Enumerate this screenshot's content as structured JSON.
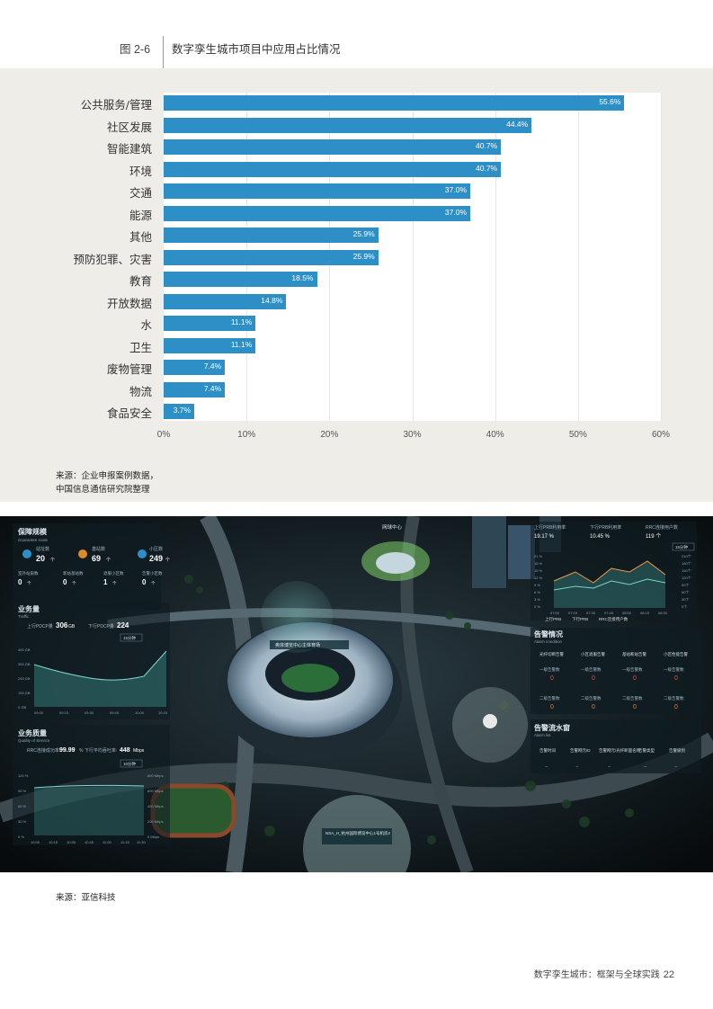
{
  "header": {
    "figure_number": "图 2-6",
    "figure_title": "数字孪生城市项目中应用占比情况"
  },
  "chart_data": {
    "type": "bar",
    "orientation": "horizontal",
    "title": "数字孪生城市项目中应用占比情况",
    "categories": [
      "公共服务/管理",
      "社区发展",
      "智能建筑",
      "环境",
      "交通",
      "能源",
      "其他",
      "预防犯罪、灾害",
      "教育",
      "开放数据",
      "水",
      "卫生",
      "废物管理",
      "物流",
      "食品安全"
    ],
    "values": [
      55.6,
      44.4,
      40.7,
      40.7,
      37.0,
      37.0,
      25.9,
      25.9,
      18.5,
      14.8,
      11.1,
      11.1,
      7.4,
      7.4,
      3.7
    ],
    "value_labels": [
      "55.6%",
      "44.4%",
      "40.7%",
      "40.7%",
      "37.0%",
      "37.0%",
      "25.9%",
      "25.9%",
      "18.5%",
      "14.8%",
      "11.1%",
      "11.1%",
      "7.4%",
      "7.4%",
      "3.7%"
    ],
    "x_ticks": [
      0,
      10,
      20,
      30,
      40,
      50,
      60
    ],
    "x_tick_labels": [
      "0%",
      "10%",
      "20%",
      "30%",
      "40%",
      "50%",
      "60%"
    ],
    "xlim": [
      0,
      60
    ],
    "grid": true,
    "legend": "none",
    "bar_color": "#2e8fc6"
  },
  "source_chart": [
    "来源：企业申报案例数据，",
    "中国信息通信研究院整理"
  ],
  "dashboard": {
    "left": {
      "guarantee_title": "保障规模",
      "guarantee_sub": "Guarantee scale",
      "stats": [
        {
          "label": "站址数",
          "value": "20",
          "unit": "个"
        },
        {
          "label": "基站数",
          "value": "69",
          "unit": "个"
        },
        {
          "label": "小区数",
          "value": "249",
          "unit": "个"
        }
      ],
      "small_stats": [
        {
          "label": "室外站扇数",
          "value": "0",
          "unit": "个"
        },
        {
          "label": "新站基站数",
          "value": "0",
          "unit": "个"
        },
        {
          "label": "退服小区数",
          "value": "1",
          "unit": "个"
        },
        {
          "label": "告警小区数",
          "value": "0",
          "unit": "个"
        }
      ],
      "traffic_title": "业务量",
      "traffic_sub": "Traffic",
      "traffic_up_label": "上行PDCP量",
      "traffic_up_value": "306",
      "traffic_up_unit": "GB",
      "traffic_down_label": "下行PDCP量",
      "traffic_down_value": "224",
      "traffic_range": "15分钟",
      "traffic_y": [
        "400 GB",
        "300 GB",
        "200 GB",
        "100 GB",
        "0 GB"
      ],
      "traffic_x": [
        "09:00",
        "09:15",
        "09:30",
        "09:45",
        "10:00",
        "10:15"
      ],
      "qos_title": "业务质量",
      "qos_sub": "Quality of Service",
      "qos_rrc_label": "RRC连接成功率:",
      "qos_rrc_value": "99.99",
      "qos_dl_label": "% 下行平均吞吐率:",
      "qos_dl_value": "448",
      "qos_dl_unit": "Mbps",
      "qos_range": "10分钟",
      "qos_y_left": [
        "120 %",
        "90 %",
        "60 %",
        "30 %",
        "0 %"
      ],
      "qos_y_right": [
        "800 Mbps",
        "600 Mbps",
        "400 Mbps",
        "200 Mbps",
        "0 Mbps"
      ],
      "qos_x": [
        "10:00",
        "10:15",
        "10:30",
        "10:45",
        "11:00",
        "11:15",
        "11:30"
      ]
    },
    "map": {
      "label_network": "网球中心",
      "label_stadium": "奥体博览中心主体育场",
      "label_site": "NSA_H_杭州国际博览中心1号机房2"
    },
    "right": {
      "top_labels": [
        "上行PRB利用率",
        "下行PRB利用率",
        "RRC连接用户数"
      ],
      "top_values": [
        "19.17 %",
        "10.45 %",
        "119 个"
      ],
      "range": "15分钟",
      "y_left": [
        "21 %",
        "18 %",
        "15 %",
        "12 %",
        "9 %",
        "6 %",
        "3 %",
        "0 %"
      ],
      "y_right": [
        "210个",
        "180个",
        "150个",
        "120个",
        "90个",
        "60个",
        "30个",
        "0个"
      ],
      "x": [
        "07:00",
        "07:15",
        "07:30",
        "07:45",
        "08:00",
        "08:15",
        "08:30"
      ],
      "legend": [
        "上行PRB",
        "下行PRB",
        "RRC连接用户数"
      ],
      "alarm_title": "告警情况",
      "alarm_sub": "Alarm condition",
      "alarm_headers": [
        "光纤切断告警",
        "小区退服告警",
        "基站断站告警",
        "小区性能告警"
      ],
      "alarm_row1_label": "一级告警数",
      "alarm_row2_label": "二级告警数",
      "alarm_row1": [
        "0",
        "0",
        "0",
        "0"
      ],
      "alarm_row2": [
        "0",
        "0",
        "0",
        "0"
      ],
      "flow_title": "告警流水窗",
      "flow_sub": "Alarm list",
      "flow_headers": [
        "告警时间",
        "告警网元ID",
        "告警网元/光纤断面名称",
        "告警类型",
        "告警级别"
      ],
      "flow_row": [
        "--",
        "--",
        "--",
        "--",
        "--"
      ]
    }
  },
  "source_photo": "来源：亚信科技",
  "footer": {
    "text": "数字孪生城市：框架与全球实践",
    "page": "22"
  }
}
